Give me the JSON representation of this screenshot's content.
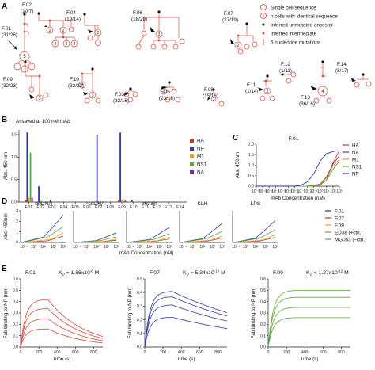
{
  "panels": {
    "A": "A",
    "B": "B",
    "C": "C",
    "D": "D",
    "E": "E"
  },
  "legend_a": [
    {
      "label": "Single cell/sequence",
      "symbol": "circle"
    },
    {
      "label": "n cells with identical sequence",
      "symbol": "circle-n",
      "n": "n"
    },
    {
      "label": "Inferred unmutated ancestor",
      "symbol": "black-dot"
    },
    {
      "label": "Inferred intermediate",
      "symbol": "red-dot"
    },
    {
      "label": "5 nucleotide mutations",
      "symbol": "bar"
    }
  ],
  "trees": [
    {
      "name": "F.01",
      "counts": "(31/26)"
    },
    {
      "name": "F.02",
      "counts": "(10/7)"
    },
    {
      "name": "F.04",
      "counts": "(19/14)"
    },
    {
      "name": "F.06",
      "counts": "(18/29)"
    },
    {
      "name": "F.07",
      "counts": "(27/19)"
    },
    {
      "name": "F.09",
      "counts": "(32/23)"
    },
    {
      "name": "F.10",
      "counts": "(32/22)"
    },
    {
      "name": "F.03",
      "counts": "(32/16)"
    },
    {
      "name": "F.05",
      "counts": "(23/16)"
    },
    {
      "name": "F.08",
      "counts": "(15/16)"
    },
    {
      "name": "F.11",
      "counts": "(1/14)"
    },
    {
      "name": "F.12",
      "counts": "(1/11)"
    },
    {
      "name": "F.13",
      "counts": "(36/16)"
    },
    {
      "name": "F.14",
      "counts": "(8/17)"
    }
  ],
  "node_counts": {
    "five": "5",
    "four": "4",
    "three": "3",
    "two": "2"
  },
  "colors": {
    "HA": "#c0392b",
    "NP": "#2e3a9c",
    "M1": "#e6a020",
    "NS1": "#5aa838",
    "NA": "#7a2a8c",
    "red": "#d4493b"
  },
  "chart_data": [
    {
      "type": "bar",
      "title": "Assayed at 100 nM mAb",
      "ylabel": "Abs. 450 nm",
      "ylim": [
        0,
        1.5
      ],
      "yticks": [
        "0.0",
        "0.5",
        "1.0",
        "1.5"
      ],
      "categories": [
        "F.01",
        "F.02",
        "F.03",
        "F.04",
        "F.05",
        "F.06",
        "F.07",
        "F.08",
        "F.09",
        "F.10",
        "F.11",
        "F.12",
        "F.13",
        "F.14"
      ],
      "series": [
        {
          "name": "HA",
          "values": [
            0.05,
            0,
            0,
            0,
            0,
            0,
            0,
            0,
            0.05,
            0,
            0,
            0,
            0,
            0
          ]
        },
        {
          "name": "NP",
          "values": [
            1.55,
            0.35,
            0.05,
            0,
            0,
            0,
            1.5,
            0,
            1.55,
            0.05,
            0,
            0,
            0,
            0
          ]
        },
        {
          "name": "M1",
          "values": [
            0.1,
            0.03,
            0,
            0,
            0,
            0,
            0,
            0,
            0.06,
            0,
            0,
            0,
            0,
            0
          ]
        },
        {
          "name": "NS1",
          "values": [
            1.1,
            0,
            0,
            0,
            0,
            0,
            0,
            0,
            0.02,
            0,
            0,
            0,
            0,
            0
          ]
        },
        {
          "name": "NA",
          "values": [
            0.1,
            0,
            0,
            0,
            0,
            0,
            0,
            0,
            0.03,
            0,
            0,
            0,
            0,
            0
          ]
        }
      ],
      "legend": [
        "HA",
        "NP",
        "M1",
        "NS1",
        "NA"
      ]
    },
    {
      "type": "line",
      "title": "F.01",
      "xlabel": "mAb Concentration (nM)",
      "ylabel": "Abs. 450nm",
      "ylim": [
        0,
        2.0
      ],
      "yticks": [
        "0.0",
        "0.5",
        "1.0",
        "1.5",
        "2.0"
      ],
      "xticks": [
        "10⁻¹⁰",
        "10⁻⁹",
        "10⁻⁸",
        "10⁻⁷",
        "10⁻⁶",
        "10⁻⁵",
        "10⁻⁴",
        "10⁻³",
        "10⁻²",
        "10⁻¹",
        "10⁰",
        "10¹",
        "10²",
        "10³"
      ],
      "series": [
        {
          "name": "HA",
          "x": [
            -10,
            -2,
            -1,
            0,
            1,
            2,
            3
          ],
          "y": [
            0,
            0,
            0.02,
            0.06,
            0.3,
            1.1,
            1.7
          ]
        },
        {
          "name": "NA",
          "x": [
            -10,
            -2,
            -1,
            0,
            1,
            2,
            3
          ],
          "y": [
            0,
            0,
            0.03,
            0.1,
            0.45,
            1.05,
            1.45
          ]
        },
        {
          "name": "M1",
          "x": [
            -10,
            -2,
            -1,
            0,
            1,
            2,
            3
          ],
          "y": [
            0,
            0,
            0.02,
            0.08,
            0.4,
            0.95,
            1.3
          ]
        },
        {
          "name": "NS1",
          "x": [
            -10,
            -2,
            -1,
            0,
            1,
            2,
            3
          ],
          "y": [
            0,
            0,
            0.01,
            0.05,
            0.3,
            0.8,
            1.2
          ]
        },
        {
          "name": "NP",
          "x": [
            -10,
            -4,
            -3,
            -2,
            -1,
            0,
            1,
            2,
            3
          ],
          "y": [
            0,
            0,
            0.05,
            0.2,
            0.6,
            1.2,
            1.55,
            1.65,
            1.7
          ]
        }
      ],
      "legend": [
        "HA",
        "NA",
        "M1",
        "NS1",
        "NP"
      ]
    },
    {
      "type": "line",
      "panel_titles": [
        "dsDNA",
        "ssDNA",
        "Insulin",
        "KLH",
        "LPS"
      ],
      "xlabel": "mAb Concentration (nM)",
      "ylabel": "Abs. 450nm",
      "ylim": [
        0,
        3
      ],
      "yticks": [
        "0",
        "1",
        "2",
        "3"
      ],
      "xticks": [
        "10⁻¹",
        "10⁰",
        "10¹",
        "10²",
        "10³"
      ],
      "legend": [
        "F.01",
        "F.07",
        "F.09",
        "ED38 (+ctrl.)",
        "MG053 (–ctrl.)"
      ]
    },
    {
      "type": "line",
      "panels": [
        {
          "name": "F.01",
          "kd": "K",
          "kd_sub": "D",
          "kd_eq": " = 1.86x10",
          "kd_exp": "-8",
          "kd_unit": " M"
        },
        {
          "name": "F.07",
          "kd": "K",
          "kd_sub": "D",
          "kd_eq": " = 5.34x10",
          "kd_exp": "-10",
          "kd_unit": " M"
        },
        {
          "name": "F.09",
          "kd": "K",
          "kd_sub": "D",
          "kd_eq": " < 1.27x10",
          "kd_exp": "-12",
          "kd_unit": " M"
        }
      ],
      "xlabel": "Time (s)",
      "ylabel": "Fab binding to NP (nm)",
      "xticks": [
        "0",
        "200",
        "400",
        "600",
        "800"
      ],
      "yticks_01": [
        "0.0",
        "0.1",
        "0.2",
        "0.3",
        "0.4",
        "0.5",
        "0.6"
      ],
      "yticks_07": [
        "0.0",
        "0.1",
        "0.2",
        "0.3",
        "0.4",
        "0.5"
      ],
      "yticks_09": [
        "0.0",
        "0.1",
        "0.2",
        "0.3",
        "0.4",
        "0.5",
        "0.6"
      ]
    }
  ]
}
